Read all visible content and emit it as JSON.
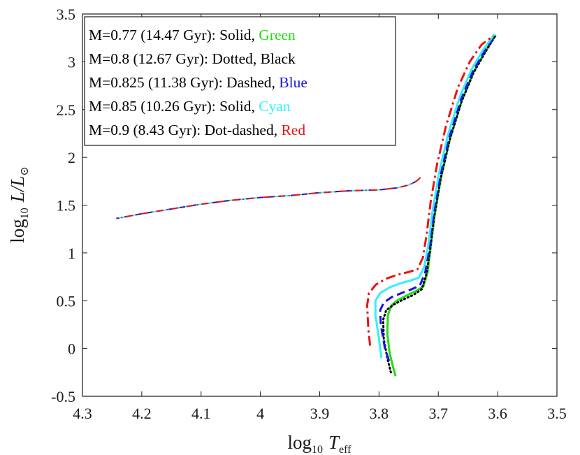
{
  "chart_data": {
    "type": "line",
    "xlabel": {
      "prefix": "log",
      "sub": "10",
      "var": "T",
      "var_sub": "eff"
    },
    "ylabel": {
      "prefix": "log",
      "sub": "10",
      "var": "L/L",
      "var_sub": "⊙"
    },
    "xlim": [
      4.3,
      3.5
    ],
    "ylim": [
      -0.5,
      3.5
    ],
    "x_ticks": [
      4.3,
      4.2,
      4.1,
      4.0,
      3.9,
      3.8,
      3.7,
      3.6,
      3.5
    ],
    "x_tick_labels": [
      "4.3",
      "4.2",
      "4.1",
      "4",
      "3.9",
      "3.8",
      "3.7",
      "3.6",
      "3.5"
    ],
    "y_ticks": [
      -0.5,
      0,
      0.5,
      1,
      1.5,
      2,
      2.5,
      3,
      3.5
    ],
    "y_tick_labels": [
      "-0.5",
      "0",
      "0.5",
      "1",
      "1.5",
      "2",
      "2.5",
      "3",
      "3.5"
    ],
    "grid": false,
    "legend_position": "top-left",
    "series": [
      {
        "name": "M=0.77 (14.47 Gyr)",
        "style_word": "Solid",
        "color_word": "Green",
        "color": "#22dd11",
        "dash": "solid",
        "width": 3,
        "x": [
          3.772,
          3.776,
          3.782,
          3.786,
          3.785,
          3.779,
          3.77,
          3.755,
          3.738,
          3.725,
          3.718,
          3.713,
          3.706,
          3.695,
          3.68,
          3.66,
          3.64,
          3.62,
          3.603
        ],
        "y": [
          -0.29,
          -0.2,
          -0.05,
          0.15,
          0.35,
          0.45,
          0.5,
          0.55,
          0.6,
          0.65,
          0.8,
          1.05,
          1.4,
          1.8,
          2.2,
          2.6,
          2.9,
          3.12,
          3.28
        ]
      },
      {
        "name": "M=0.8 (12.67 Gyr)",
        "style_word": "Dotted",
        "color_word": "Black",
        "color": "#000000",
        "dash": "dotted",
        "width": 3,
        "x": [
          3.78,
          3.786,
          3.792,
          3.793,
          3.788,
          3.775,
          3.76,
          3.742,
          3.728,
          3.72,
          3.714,
          3.707,
          3.696,
          3.681,
          3.661,
          3.641,
          3.621,
          3.604
        ],
        "y": [
          -0.25,
          -0.1,
          0.1,
          0.3,
          0.4,
          0.46,
          0.51,
          0.56,
          0.62,
          0.78,
          1.03,
          1.38,
          1.78,
          2.18,
          2.58,
          2.88,
          3.1,
          3.27
        ]
      },
      {
        "name": "M=0.825 (11.38 Gyr)",
        "style_word": "Dashed",
        "color_word": "Blue",
        "color": "#1515dd",
        "dash": "dashed",
        "width": 3,
        "x": [
          3.783,
          3.79,
          3.797,
          3.798,
          3.792,
          3.778,
          3.762,
          3.745,
          3.731,
          3.722,
          3.715,
          3.708,
          3.697,
          3.682,
          3.662,
          3.642,
          3.622,
          3.605
        ],
        "y": [
          -0.13,
          0.0,
          0.25,
          0.4,
          0.48,
          0.54,
          0.58,
          0.62,
          0.66,
          0.8,
          1.05,
          1.4,
          1.8,
          2.2,
          2.6,
          2.9,
          3.11,
          3.27
        ]
      },
      {
        "name": "M=0.85 (10.26 Gyr)",
        "style_word": "Solid",
        "color_word": "Cyan",
        "color": "#33eeff",
        "dash": "solid",
        "width": 3,
        "x": [
          3.796,
          3.8,
          3.806,
          3.806,
          3.798,
          3.782,
          3.765,
          3.748,
          3.733,
          3.724,
          3.717,
          3.71,
          3.699,
          3.684,
          3.664,
          3.644,
          3.624,
          3.605
        ],
        "y": [
          -0.1,
          0.1,
          0.35,
          0.5,
          0.58,
          0.64,
          0.68,
          0.71,
          0.74,
          0.85,
          1.08,
          1.43,
          1.83,
          2.23,
          2.63,
          2.92,
          3.13,
          3.29
        ]
      },
      {
        "name": "M=0.9 (8.43 Gyr)",
        "style_word": "Dot-dashed",
        "color_word": "Red",
        "color": "#ee1111",
        "dash": "dashdot",
        "width": 3,
        "x": [
          3.815,
          3.818,
          3.82,
          3.817,
          3.805,
          3.788,
          3.77,
          3.75,
          3.735,
          3.726,
          3.72,
          3.713,
          3.702,
          3.687,
          3.667,
          3.647,
          3.627,
          3.607
        ],
        "y": [
          0.03,
          0.2,
          0.45,
          0.58,
          0.67,
          0.73,
          0.77,
          0.8,
          0.83,
          0.95,
          1.18,
          1.53,
          1.93,
          2.33,
          2.73,
          3.0,
          3.18,
          3.27
        ]
      }
    ],
    "horizontal_branch": {
      "colors": [
        "#33eeff",
        "#1515dd",
        "#ee1111"
      ],
      "x": [
        4.243,
        4.2,
        4.15,
        4.1,
        4.05,
        4.0,
        3.95,
        3.9,
        3.85,
        3.8,
        3.77,
        3.75,
        3.74,
        3.735,
        3.73
      ],
      "y": [
        1.36,
        1.41,
        1.46,
        1.51,
        1.55,
        1.58,
        1.6,
        1.63,
        1.65,
        1.66,
        1.68,
        1.71,
        1.74,
        1.76,
        1.79
      ]
    }
  }
}
